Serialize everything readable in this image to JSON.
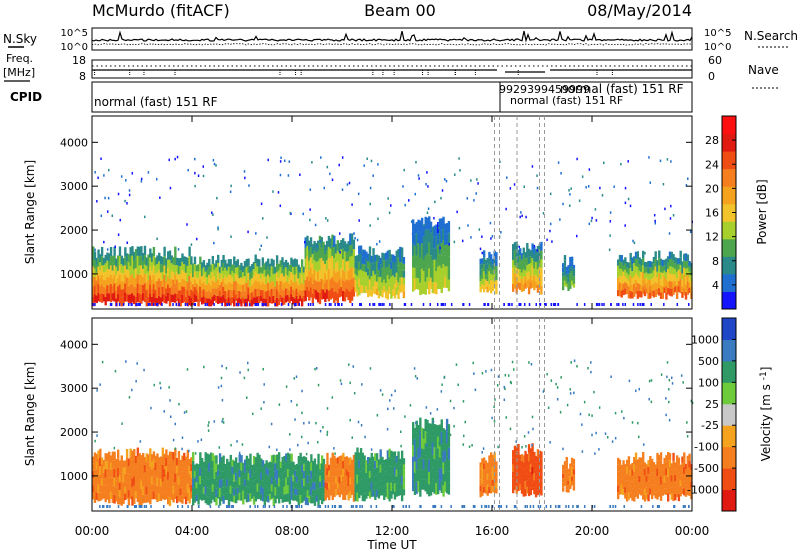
{
  "header": {
    "station": "McMurdo (fitACF)",
    "beam": "Beam 00",
    "date": "08/May/2014"
  },
  "panels": {
    "sky_search": {
      "left_label": "N.Sky",
      "right_label": "N.Search",
      "ticks_left": [
        "10^5",
        "10^0"
      ],
      "ticks_right": [
        "10^5",
        "10^0"
      ]
    },
    "freq_nave": {
      "left_label_line1": "Freq.",
      "left_label_line2": "[MHz]",
      "right_label": "Nave",
      "ticks_left": [
        "18",
        "8"
      ],
      "ticks_right": [
        "60",
        "0"
      ]
    },
    "cpid": {
      "label": "CPID",
      "text_main": "normal (fast) 151 RF",
      "text_right": "normal (fast) 151 RF",
      "text_codes": "9929399459999",
      "text_under": "normal (fast) 151 RF"
    }
  },
  "chart_data": [
    {
      "type": "heatmap",
      "name": "Power",
      "xlabel": "Time UT",
      "ylabel": "Slant Range [km]",
      "x_ticks": [
        "00:00",
        "04:00",
        "08:00",
        "12:00",
        "16:00",
        "20:00",
        "00:00"
      ],
      "x_range_hours": [
        0,
        24
      ],
      "y_ticks": [
        1000,
        2000,
        3000,
        4000
      ],
      "ylim": [
        200,
        4600
      ],
      "colorbar": {
        "label": "Power [dB]",
        "ticks": [
          4,
          8,
          12,
          16,
          20,
          24,
          28
        ],
        "range": [
          0,
          32
        ],
        "colors": [
          "#1414ff",
          "#1f6fd1",
          "#2a8a8a",
          "#4da64d",
          "#a8d02c",
          "#f2c32a",
          "#f5a21f",
          "#f57f1f",
          "#f04d14",
          "#e01a10",
          "#ff1010"
        ]
      },
      "echo_segments": [
        {
          "t0": 0.0,
          "t1": 4.0,
          "r_low": 300,
          "r_high": 1500,
          "core_db": 28
        },
        {
          "t0": 4.0,
          "t1": 8.5,
          "r_low": 300,
          "r_high": 1300,
          "core_db": 28
        },
        {
          "t0": 8.5,
          "t1": 10.5,
          "r_low": 400,
          "r_high": 1800,
          "core_db": 26
        },
        {
          "t0": 10.5,
          "t1": 12.5,
          "r_low": 500,
          "r_high": 1500,
          "core_db": 16
        },
        {
          "t0": 12.8,
          "t1": 14.3,
          "r_low": 600,
          "r_high": 2200,
          "core_db": 14
        },
        {
          "t0": 15.5,
          "t1": 16.2,
          "r_low": 600,
          "r_high": 1400,
          "core_db": 16
        },
        {
          "t0": 16.8,
          "t1": 18.0,
          "r_low": 600,
          "r_high": 1600,
          "core_db": 20
        },
        {
          "t0": 18.8,
          "t1": 19.3,
          "r_low": 700,
          "r_high": 1300,
          "core_db": 12
        },
        {
          "t0": 21.0,
          "t1": 24.0,
          "r_low": 500,
          "r_high": 1400,
          "core_db": 24
        }
      ]
    },
    {
      "type": "heatmap",
      "name": "Velocity",
      "xlabel": "Time UT",
      "ylabel": "Slant Range [km]",
      "x_ticks": [
        "00:00",
        "04:00",
        "08:00",
        "12:00",
        "16:00",
        "20:00",
        "00:00"
      ],
      "x_range_hours": [
        0,
        24
      ],
      "y_ticks": [
        1000,
        2000,
        3000,
        4000
      ],
      "ylim": [
        200,
        4600
      ],
      "colorbar": {
        "label": "Velocity [m s^-1]",
        "ticks": [
          "1000",
          "500",
          "100",
          "25",
          "-25",
          "-100",
          "-500",
          "-1000"
        ],
        "colors": [
          "#2046c8",
          "#3a7ac0",
          "#2f9a66",
          "#6ecb3c",
          "#c8c8c8",
          "#f5a21f",
          "#f57f1f",
          "#f04d14",
          "#e01a10"
        ]
      },
      "echo_segments": [
        {
          "t0": 0.0,
          "t1": 4.0,
          "r_low": 400,
          "r_high": 1500,
          "velocity": -100
        },
        {
          "t0": 4.0,
          "t1": 9.3,
          "r_low": 400,
          "r_high": 1400,
          "velocity": 100
        },
        {
          "t0": 9.3,
          "t1": 10.5,
          "r_low": 500,
          "r_high": 1400,
          "velocity": -100
        },
        {
          "t0": 10.5,
          "t1": 12.5,
          "r_low": 500,
          "r_high": 1500,
          "velocity": 100
        },
        {
          "t0": 12.8,
          "t1": 14.3,
          "r_low": 600,
          "r_high": 2200,
          "velocity": 100
        },
        {
          "t0": 15.5,
          "t1": 16.2,
          "r_low": 600,
          "r_high": 1400,
          "velocity": -100
        },
        {
          "t0": 16.8,
          "t1": 18.0,
          "r_low": 600,
          "r_high": 1600,
          "velocity": -500
        },
        {
          "t0": 18.8,
          "t1": 19.3,
          "r_low": 700,
          "r_high": 1300,
          "velocity": -100
        },
        {
          "t0": 21.0,
          "t1": 24.0,
          "r_low": 500,
          "r_high": 1400,
          "velocity": -100
        }
      ]
    }
  ]
}
